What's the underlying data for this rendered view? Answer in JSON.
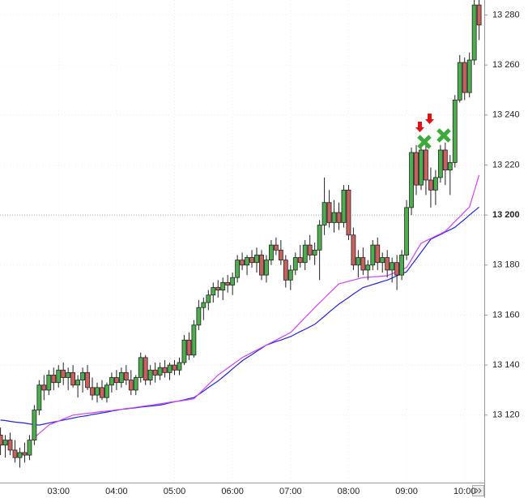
{
  "chart_data": {
    "type": "candlestick",
    "categories": [
      null,
      null,
      null,
      null,
      null,
      null,
      null,
      null,
      null,
      null,
      null,
      null,
      "03:00",
      null,
      null,
      null,
      null,
      null,
      null,
      null,
      null,
      null,
      null,
      null,
      "04:00",
      null,
      null,
      null,
      null,
      null,
      null,
      null,
      null,
      null,
      null,
      null,
      "05:00",
      null,
      null,
      null,
      null,
      null,
      null,
      null,
      null,
      null,
      null,
      null,
      "06:00",
      null,
      null,
      null,
      null,
      null,
      null,
      null,
      null,
      null,
      null,
      null,
      "07:00",
      null,
      null,
      null,
      null,
      null,
      null,
      null,
      null,
      null,
      null,
      null,
      "08:00",
      null,
      null,
      null,
      null,
      null,
      null,
      null,
      null,
      null,
      null,
      null,
      "09:00",
      null,
      null,
      null,
      null,
      null,
      null,
      null,
      null,
      null,
      null,
      null,
      "10:00",
      null,
      null,
      null
    ],
    "open": [
      13112,
      13108,
      13110,
      13106,
      13103,
      13105,
      13104,
      13110,
      13122,
      13132,
      13130,
      13136,
      13133,
      13138,
      13135,
      13137,
      13132,
      13134,
      13137,
      13131,
      13128,
      13131,
      13127,
      13132,
      13135,
      13133,
      13137,
      13134,
      13130,
      13135,
      13143,
      13134,
      13138,
      13136,
      13139,
      13137,
      13140,
      13138,
      13141,
      13150,
      13144,
      13156,
      13163,
      13165,
      13168,
      13171,
      13170,
      13173,
      13172,
      13175,
      13182,
      13180,
      13183,
      13181,
      13184,
      13176,
      13182,
      13188,
      13186,
      13182,
      13174,
      13178,
      13183,
      13181,
      13188,
      13184,
      13186,
      13196,
      13205,
      13197,
      13201,
      13197,
      13210,
      13192,
      13180,
      13183,
      13178,
      13180,
      13188,
      13181,
      13183,
      13178,
      13181,
      13176,
      13184,
      13203,
      13225,
      13212,
      13226,
      13214,
      13210,
      13215,
      13226,
      13218,
      13221,
      13246,
      13261,
      13249,
      13262,
      13284
    ],
    "high": [
      13115,
      13112,
      13113,
      13110,
      13107,
      13109,
      13112,
      13124,
      13134,
      13136,
      13138,
      13139,
      13140,
      13141,
      13139,
      13140,
      13136,
      13139,
      13140,
      13135,
      13133,
      13134,
      13133,
      13137,
      13138,
      13139,
      13140,
      13138,
      13136,
      13145,
      13144,
      13140,
      13141,
      13141,
      13142,
      13141,
      13142,
      13143,
      13152,
      13153,
      13158,
      13166,
      13167,
      13170,
      13173,
      13174,
      13175,
      13176,
      13177,
      13184,
      13185,
      13184,
      13186,
      13187,
      13186,
      13184,
      13190,
      13191,
      13190,
      13184,
      13180,
      13185,
      13188,
      13190,
      13192,
      13189,
      13198,
      13215,
      13210,
      13206,
      13205,
      13212,
      13212,
      13195,
      13186,
      13187,
      13182,
      13190,
      13191,
      13185,
      13186,
      13183,
      13184,
      13186,
      13206,
      13227,
      13228,
      13229,
      13228,
      13219,
      13218,
      13228,
      13229,
      13224,
      13248,
      13264,
      13263,
      13265,
      13286,
      13286
    ],
    "low": [
      13104,
      13103,
      13104,
      13101,
      13099,
      13101,
      13102,
      13108,
      13120,
      13126,
      13128,
      13130,
      13131,
      13132,
      13130,
      13131,
      13127,
      13129,
      13130,
      13126,
      13125,
      13126,
      13125,
      13129,
      13130,
      13131,
      13132,
      13128,
      13128,
      13133,
      13132,
      13132,
      13133,
      13134,
      13135,
      13134,
      13136,
      13136,
      13140,
      13142,
      13143,
      13154,
      13158,
      13162,
      13165,
      13167,
      13166,
      13169,
      13168,
      13173,
      13178,
      13176,
      13179,
      13177,
      13174,
      13173,
      13180,
      13184,
      13180,
      13171,
      13170,
      13176,
      13179,
      13178,
      13182,
      13180,
      13174,
      13192,
      13195,
      13193,
      13194,
      13195,
      13190,
      13178,
      13175,
      13176,
      13174,
      13178,
      13178,
      13177,
      13175,
      13173,
      13170,
      13174,
      13182,
      13200,
      13208,
      13210,
      13208,
      13203,
      13204,
      13213,
      13212,
      13208,
      13219,
      13245,
      13246,
      13247,
      13260,
      13270
    ],
    "close": [
      13108,
      13110,
      13106,
      13103,
      13105,
      13104,
      13110,
      13122,
      13132,
      13130,
      13136,
      13133,
      13138,
      13135,
      13137,
      13132,
      13134,
      13137,
      13131,
      13128,
      13131,
      13127,
      13132,
      13135,
      13133,
      13137,
      13134,
      13130,
      13135,
      13143,
      13134,
      13138,
      13136,
      13139,
      13137,
      13140,
      13138,
      13141,
      13150,
      13144,
      13156,
      13163,
      13165,
      13168,
      13171,
      13170,
      13173,
      13172,
      13175,
      13182,
      13180,
      13183,
      13181,
      13184,
      13176,
      13182,
      13188,
      13186,
      13182,
      13174,
      13178,
      13183,
      13181,
      13188,
      13184,
      13186,
      13196,
      13205,
      13197,
      13201,
      13197,
      13210,
      13192,
      13180,
      13183,
      13178,
      13180,
      13188,
      13181,
      13183,
      13178,
      13181,
      13176,
      13184,
      13203,
      13225,
      13212,
      13226,
      13214,
      13210,
      13215,
      13226,
      13218,
      13221,
      13246,
      13261,
      13249,
      13262,
      13284,
      13276
    ],
    "up_color": "#4cae4c",
    "down_color": "#c9625f",
    "series": [
      {
        "color": "#2424d8",
        "values": [
          13118,
          13117.8,
          13117.5,
          13117.2,
          13117,
          13116.8,
          13116.5,
          13116.2,
          13116,
          13116.4,
          13116.8,
          13117.2,
          13117.6,
          13118,
          13118.4,
          13118.8,
          13119.2,
          13119.5,
          13119.8,
          13120.2,
          13120.5,
          13120.9,
          13121.2,
          13121.6,
          13121.9,
          13122.3,
          13122.5,
          13122.7,
          13122.9,
          13123.2,
          13123.4,
          13123.6,
          13123.8,
          13124,
          13124.4,
          13124.9,
          13125.3,
          13125.7,
          13126.1,
          13126.6,
          13127,
          13128.3,
          13129.6,
          13131,
          13132.3,
          13133.6,
          13135.2,
          13136.8,
          13138.5,
          13140.1,
          13141.7,
          13143,
          13144.2,
          13145.5,
          13146.7,
          13148,
          13148.7,
          13149.4,
          13150,
          13150.7,
          13151.4,
          13152.4,
          13153.4,
          13154.3,
          13155.3,
          13156.3,
          13157.9,
          13159.5,
          13161.2,
          13162.8,
          13164.4,
          13165.7,
          13167,
          13168.4,
          13169.7,
          13171,
          13171.6,
          13172.2,
          13172.8,
          13173.4,
          13174,
          13174.8,
          13175.7,
          13176.5,
          13177.3,
          13179.9,
          13182.5,
          13185.1,
          13187.7,
          13190.3,
          13191.3,
          13192.2,
          13193.2,
          13194.1,
          13195.1,
          13196.7,
          13198.3,
          13200,
          13201.6,
          13203.2
        ]
      },
      {
        "color": "#cc44ee",
        "values": [
          null,
          null,
          null,
          null,
          null,
          null,
          null,
          13111,
          13112.7,
          13114.3,
          13116,
          13116.8,
          13117.6,
          13118.4,
          13119.2,
          13120,
          13120.2,
          13120.5,
          13120.7,
          13120.9,
          13121.2,
          13121.4,
          13121.6,
          13121.8,
          13122.1,
          13122.3,
          13122.6,
          13122.8,
          13123.1,
          13123.4,
          13123.7,
          13123.9,
          13124.2,
          13124.5,
          13124.8,
          13125.1,
          13125.4,
          13125.6,
          13125.9,
          13126.2,
          13126.5,
          13128.4,
          13130.3,
          13132.2,
          13134.1,
          13136,
          13137.4,
          13138.8,
          13140.2,
          13141.6,
          13143,
          13144,
          13145,
          13146,
          13147,
          13148,
          13149,
          13150,
          13151,
          13152,
          13153,
          13155,
          13157,
          13159,
          13161,
          13163,
          13164.9,
          13166.8,
          13168.7,
          13170.6,
          13172.5,
          13173,
          13173.5,
          13174,
          13174.5,
          13175,
          13175.1,
          13175.3,
          13175.4,
          13175.6,
          13175.7,
          13176.5,
          13177.4,
          13178.2,
          13179,
          13182.2,
          13185.5,
          13188.7,
          13189.7,
          13190.6,
          13191.6,
          13192.5,
          13193.5,
          13195.4,
          13197.4,
          13199.3,
          13201.3,
          13203.2,
          13209.6,
          13216
        ]
      }
    ],
    "ylim": [
      13093,
      13286
    ],
    "yticks": [
      {
        "value": 13120,
        "label": "13 120"
      },
      {
        "value": 13140,
        "label": "13 140"
      },
      {
        "value": 13160,
        "label": "13 160"
      },
      {
        "value": 13180,
        "label": "13 180"
      },
      {
        "value": 13200,
        "label": "13 200",
        "bold": true
      },
      {
        "value": 13220,
        "label": "13 220"
      },
      {
        "value": 13240,
        "label": "13 240"
      },
      {
        "value": 13260,
        "label": "13 260"
      },
      {
        "value": 13280,
        "label": "13 280"
      }
    ],
    "grid": true
  }
}
